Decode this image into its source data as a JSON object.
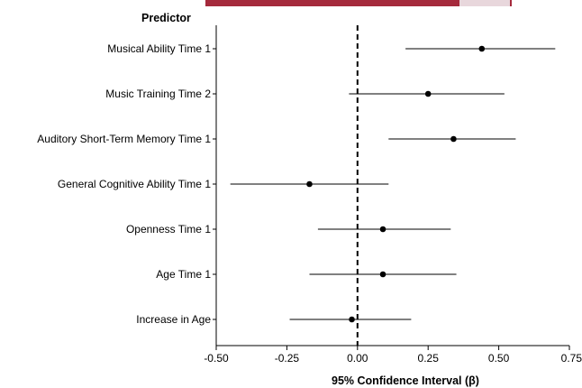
{
  "chart_data": {
    "type": "forest",
    "legend_title": "Predictor",
    "xlabel": "95% Confidence Interval (β)",
    "xlim": [
      -0.5,
      0.75
    ],
    "xticks": [
      -0.5,
      -0.25,
      0.0,
      0.25,
      0.5,
      0.75
    ],
    "xtick_labels": [
      "-0.50",
      "-0.25",
      "0.00",
      "0.25",
      "0.50",
      "0.75"
    ],
    "reference_line": 0.0,
    "rows": [
      {
        "label": "Musical Ability Time 1",
        "estimate": 0.44,
        "ci_low": 0.17,
        "ci_high": 0.7
      },
      {
        "label": "Music Training Time 2",
        "estimate": 0.25,
        "ci_low": -0.03,
        "ci_high": 0.52
      },
      {
        "label": "Auditory Short-Term Memory Time 1",
        "estimate": 0.34,
        "ci_low": 0.11,
        "ci_high": 0.56
      },
      {
        "label": "General Cognitive Ability Time 1",
        "estimate": -0.17,
        "ci_low": -0.45,
        "ci_high": 0.11
      },
      {
        "label": "Openness Time 1",
        "estimate": 0.09,
        "ci_low": -0.14,
        "ci_high": 0.33
      },
      {
        "label": "Age Time 1",
        "estimate": 0.09,
        "ci_low": -0.17,
        "ci_high": 0.35
      },
      {
        "label": "Increase in Age",
        "estimate": -0.02,
        "ci_low": -0.24,
        "ci_high": 0.19
      }
    ],
    "grid": false,
    "colors": {
      "marker": "#000000",
      "ci_line": "#000000",
      "reference": "#000000",
      "banner": "#a52a3c"
    }
  }
}
